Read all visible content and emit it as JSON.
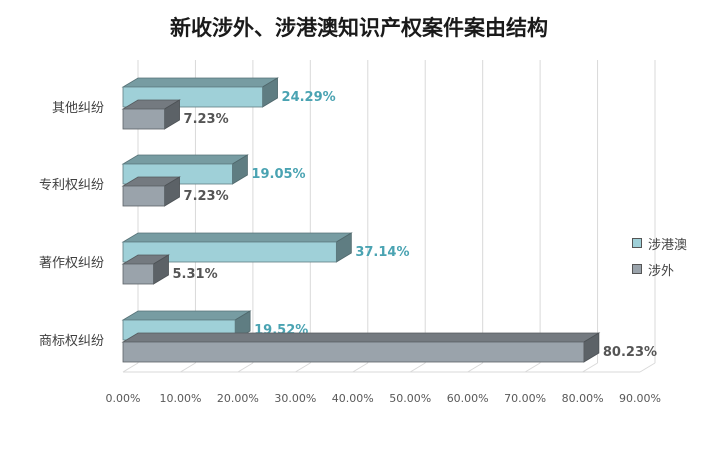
{
  "chart_data": {
    "type": "bar",
    "orientation": "horizontal",
    "title": "新收涉外、涉港澳知识产权案件案由结构",
    "categories": [
      "其他纠纷",
      "专利权纠纷",
      "著作权纠纷",
      "商标权纠纷"
    ],
    "series": [
      {
        "name": "涉港澳",
        "values": [
          24.29,
          19.05,
          37.14,
          19.52
        ],
        "labels": [
          "24.29%",
          "19.05%",
          "37.14%",
          "19.52%"
        ],
        "color": "#9fd0d8",
        "label_color": "#4aa3b2"
      },
      {
        "name": "涉外",
        "values": [
          7.23,
          7.23,
          5.31,
          80.23
        ],
        "labels": [
          "7.23%",
          "7.23%",
          "5.31%",
          "80.23%"
        ],
        "color": "#9aa3ab",
        "label_color": "#555555"
      }
    ],
    "x_ticks": [
      "0.00%",
      "10.00%",
      "20.00%",
      "30.00%",
      "40.00%",
      "50.00%",
      "60.00%",
      "70.00%",
      "80.00%",
      "90.00%"
    ],
    "xlim": [
      0,
      90
    ],
    "grid": true,
    "legend_position": "right"
  }
}
